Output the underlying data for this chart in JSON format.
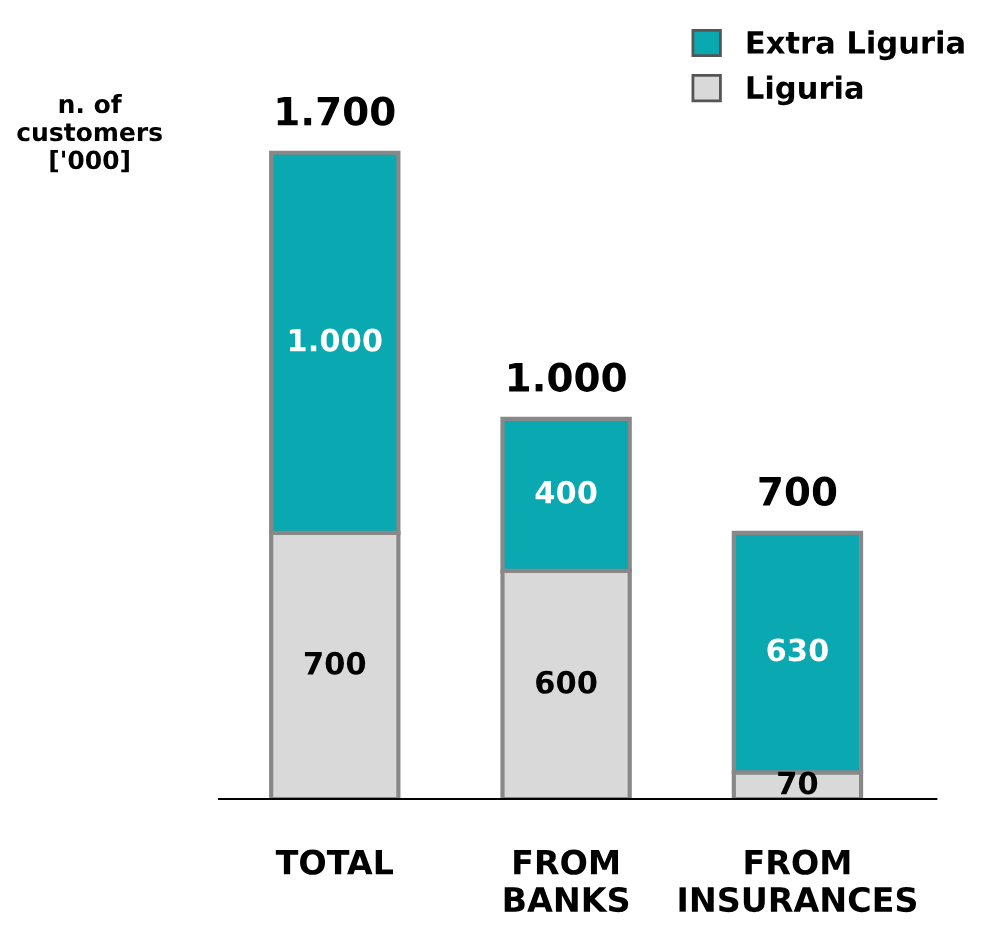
{
  "chart_data": {
    "type": "bar",
    "stacked": true,
    "ylabel": "n. of\ncustomers\n['000]",
    "categories": [
      "TOTAL",
      "FROM\nBANKS",
      "FROM\nINSURANCES"
    ],
    "series": [
      {
        "name": "Liguria",
        "color": "#d9d9d9",
        "values": [
          700,
          600,
          70
        ],
        "value_labels": [
          "700",
          "600",
          "70"
        ]
      },
      {
        "name": "Extra Liguria",
        "color": "#0aa9b2",
        "values": [
          1000,
          400,
          630
        ],
        "value_labels": [
          "1.000",
          "400",
          "630"
        ]
      }
    ],
    "totals": [
      "1.700",
      "1.000",
      "700"
    ],
    "legend": "top right",
    "grid": false,
    "tick_labels": "x"
  }
}
